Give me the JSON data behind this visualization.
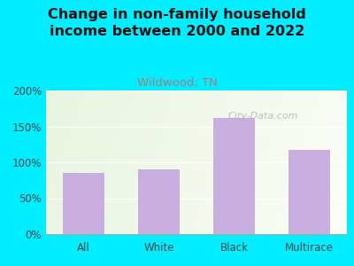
{
  "title": "Change in non-family household\nincome between 2000 and 2022",
  "subtitle": "Wildwood, TN",
  "categories": [
    "All",
    "White",
    "Black",
    "Multirace"
  ],
  "values": [
    85,
    90,
    162,
    117
  ],
  "bar_color": "#c9aee0",
  "title_fontsize": 11.5,
  "subtitle_fontsize": 9.5,
  "subtitle_color": "#b07878",
  "title_color": "#111111",
  "background_outer": "#00eeff",
  "ylim": [
    0,
    200
  ],
  "yticks": [
    0,
    50,
    100,
    150,
    200
  ],
  "ytick_labels": [
    "0%",
    "50%",
    "100%",
    "150%",
    "200%"
  ],
  "watermark": "City-Data.com",
  "watermark_color": "#aaaaaa",
  "grid_color": "#ffffff",
  "axis_color": "#aaaaaa"
}
